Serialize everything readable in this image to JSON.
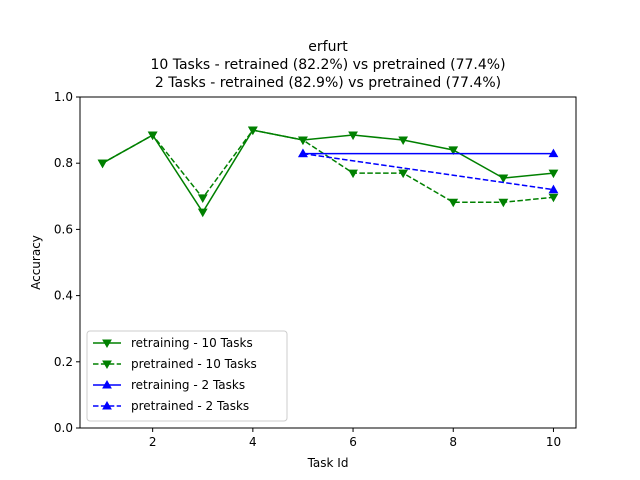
{
  "chart_data": {
    "type": "line",
    "title": "erfurt",
    "subtitle_lines": [
      "10 Tasks - retrained (82.2%) vs pretrained (77.4%)",
      "2 Tasks - retrained (82.9%) vs pretrained (77.4%)"
    ],
    "xlabel": "Task Id",
    "ylabel": "Accuracy",
    "xlim": [
      0.55,
      10.45
    ],
    "ylim": [
      0.0,
      1.0
    ],
    "xticks": [
      2,
      4,
      6,
      8,
      10
    ],
    "yticks": [
      0.0,
      0.2,
      0.4,
      0.6,
      0.8,
      1.0
    ],
    "xtick_labels": [
      "2",
      "4",
      "6",
      "8",
      "10"
    ],
    "ytick_labels": [
      "0.0",
      "0.2",
      "0.4",
      "0.6",
      "0.8",
      "1.0"
    ],
    "grid": false,
    "legend_position": "lower-left",
    "series": [
      {
        "name": "retraining - 10 Tasks",
        "color": "#008000",
        "dash": "solid",
        "marker": "triangle-down",
        "x": [
          1,
          2,
          3,
          4,
          5,
          6,
          7,
          8,
          9,
          10
        ],
        "y": [
          0.8,
          0.885,
          0.652,
          0.9,
          0.87,
          0.885,
          0.87,
          0.84,
          0.755,
          0.77
        ]
      },
      {
        "name": "pretrained - 10 Tasks",
        "color": "#008000",
        "dash": "dashed",
        "marker": "triangle-down",
        "x": [
          1,
          2,
          3,
          4,
          5,
          6,
          7,
          8,
          9,
          10
        ],
        "y": [
          0.8,
          0.885,
          0.695,
          0.9,
          0.87,
          0.77,
          0.77,
          0.682,
          0.682,
          0.697
        ]
      },
      {
        "name": "retraining - 2 Tasks",
        "color": "#0000ff",
        "dash": "solid",
        "marker": "triangle-up",
        "x": [
          5,
          10
        ],
        "y": [
          0.829,
          0.829
        ]
      },
      {
        "name": "pretrained - 2 Tasks",
        "color": "#0000ff",
        "dash": "dashed",
        "marker": "triangle-up",
        "x": [
          5,
          10
        ],
        "y": [
          0.829,
          0.72
        ]
      }
    ]
  }
}
